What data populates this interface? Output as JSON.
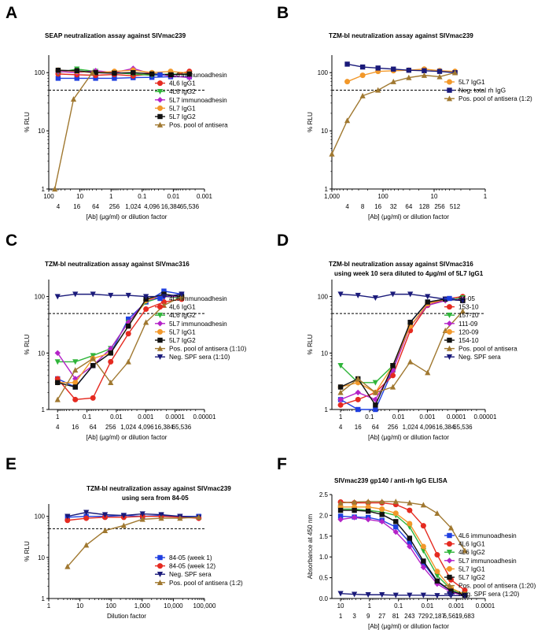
{
  "chart_data": [
    {
      "type": "line",
      "panel_label": "A",
      "title": "SEAP neutralization assay against SIVmac239",
      "title2": "",
      "ylabel": "% RLU",
      "xlabel": "[Ab] (μg/ml) or dilution factor",
      "x_scale": "log",
      "x_reversed": true,
      "xlim": [
        100,
        0.001
      ],
      "x_ticks": [
        "100",
        "10",
        "1",
        "0.1",
        "0.01",
        "0.001"
      ],
      "x_ticks2": [
        "4",
        "16",
        "64",
        "256",
        "1,024",
        "4,096",
        "16,384",
        "65,536"
      ],
      "y_scale": "log",
      "ylim": [
        1,
        200
      ],
      "y_ticks": [
        "1",
        "10",
        "100"
      ],
      "reference_line_y": 50,
      "legend_position": "right",
      "x": [
        50,
        12.5,
        3.125,
        0.78125,
        0.1953,
        0.0488,
        0.0122,
        0.00305
      ],
      "series": [
        {
          "name": "4L6 immunoadhesin",
          "color": "#1f3fe0",
          "marker": "square",
          "values": [
            80,
            80,
            80,
            80,
            82,
            83,
            85,
            85
          ]
        },
        {
          "name": "4L6 IgG1",
          "color": "#e52a20",
          "marker": "circle",
          "values": [
            95,
            92,
            90,
            93,
            88,
            95,
            90,
            105
          ]
        },
        {
          "name": "4L6 IgG2",
          "color": "#2fb53a",
          "marker": "triangle-down",
          "values": [
            100,
            115,
            105,
            100,
            95,
            90,
            95,
            92
          ]
        },
        {
          "name": "5L7 immunoadhesin",
          "color": "#b423c8",
          "marker": "diamond",
          "values": [
            105,
            100,
            108,
            100,
            118,
            95,
            88,
            82
          ]
        },
        {
          "name": "5L7 IgG1",
          "color": "#f2982a",
          "marker": "circle",
          "values": [
            110,
            105,
            100,
            105,
            110,
            100,
            105,
            98
          ]
        },
        {
          "name": "5L7 IgG2",
          "color": "#111111",
          "marker": "square",
          "values": [
            110,
            108,
            100,
            98,
            100,
            95,
            92,
            95
          ]
        },
        {
          "name": "Pos. pool of antisera",
          "color": "#a07830",
          "marker": "triangle",
          "x": [
            64,
            16,
            4
          ],
          "values": [
            1,
            35,
            100
          ]
        }
      ]
    },
    {
      "type": "line",
      "panel_label": "B",
      "title": "TZM-bl neutralization assay against SIVmac239",
      "title2": "",
      "ylabel": "% RLU",
      "xlabel": "[Ab] (μg/ml) or dilution factor",
      "x_scale": "log",
      "x_reversed": true,
      "xlim": [
        1000,
        1
      ],
      "x_ticks": [
        "1,000",
        "100",
        "10",
        "1"
      ],
      "x_ticks2": [
        "4",
        "8",
        "16",
        "32",
        "64",
        "128",
        "256",
        "512"
      ],
      "y_scale": "log",
      "ylim": [
        1,
        200
      ],
      "y_ticks": [
        "1",
        "10",
        "100"
      ],
      "reference_line_y": 50,
      "legend_position": "right",
      "x": [
        500,
        250,
        125,
        62.5,
        31.25,
        15.6,
        7.8,
        3.9
      ],
      "series": [
        {
          "name": "5L7 IgG1",
          "color": "#f2982a",
          "marker": "circle",
          "values": [
            70,
            90,
            105,
            108,
            110,
            115,
            108,
            105
          ]
        },
        {
          "name": "Neg. total rh IgG",
          "color": "#1a1a7a",
          "marker": "square",
          "values": [
            140,
            125,
            120,
            115,
            110,
            108,
            105,
            100
          ]
        },
        {
          "name": "Pos. pool of antisera (1:2)",
          "color": "#a07830",
          "marker": "triangle",
          "x": [
            1000,
            500,
            250,
            125,
            62.5,
            31.25,
            15.6,
            7.8,
            3.9
          ],
          "values": [
            4,
            15,
            40,
            50,
            70,
            82,
            90,
            85,
            100
          ]
        }
      ]
    },
    {
      "type": "line",
      "panel_label": "C",
      "title": "TZM-bl neutralization assay against SIVmac316",
      "title2": "",
      "ylabel": "% RLU",
      "xlabel": "[Ab] (μg/ml) or dilution factor",
      "x_scale": "log",
      "x_reversed": true,
      "xlim": [
        2,
        1e-05
      ],
      "x_ticks": [
        "1",
        "0.1",
        "0.01",
        "0.001",
        "0.0001",
        "0.00001"
      ],
      "x_ticks2": [
        "4",
        "16",
        "64",
        "256",
        "1,024",
        "4,096",
        "16,384",
        "65,536"
      ],
      "y_scale": "log",
      "ylim": [
        1,
        200
      ],
      "y_ticks": [
        "1",
        "10",
        "100"
      ],
      "reference_line_y": 50,
      "legend_position": "right",
      "x": [
        1,
        0.25,
        0.0625,
        0.0156,
        0.0039,
        0.00098,
        0.00024,
        6e-05
      ],
      "series": [
        {
          "name": "4L6 immunoadhesin",
          "color": "#1f3fe0",
          "marker": "square",
          "values": [
            3.5,
            2.5,
            6,
            10,
            40,
            80,
            125,
            110
          ]
        },
        {
          "name": "4L6 IgG1",
          "color": "#e52a20",
          "marker": "circle",
          "values": [
            3.5,
            1.5,
            1.6,
            7,
            22,
            60,
            80,
            90
          ]
        },
        {
          "name": "4L6 IgG2",
          "color": "#2fb53a",
          "marker": "triangle-down",
          "values": [
            7,
            7,
            9,
            12,
            35,
            80,
            100,
            95
          ]
        },
        {
          "name": "5L7 immunoadhesin",
          "color": "#b423c8",
          "marker": "diamond",
          "values": [
            10,
            3.5,
            6,
            12,
            35,
            85,
            100,
            100
          ]
        },
        {
          "name": "5L7 IgG1",
          "color": "#f2982a",
          "marker": "circle",
          "values": [
            3,
            3,
            8,
            10,
            30,
            85,
            110,
            100
          ]
        },
        {
          "name": "5L7 IgG2",
          "color": "#111111",
          "marker": "square",
          "values": [
            3,
            2.5,
            6,
            10,
            30,
            90,
            110,
            100
          ]
        },
        {
          "name": "Pos. pool of antisera (1:10)",
          "color": "#a07830",
          "marker": "triangle",
          "values": [
            1.5,
            5,
            8,
            3,
            7,
            35,
            70,
            100
          ]
        },
        {
          "name": "Neg. SPF sera (1:10)",
          "color": "#1a1a7a",
          "marker": "triangle-down",
          "values": [
            100,
            110,
            110,
            105,
            105,
            100,
            100,
            110
          ]
        }
      ]
    },
    {
      "type": "line",
      "panel_label": "D",
      "title": "TZM-bl neutralization assay against SIVmac316",
      "title2": "using week 10 sera diluted to 4μg/ml of 5L7 IgG1",
      "ylabel": "% RLU",
      "xlabel": "[Ab] (μg/ml) or dilution factor",
      "x_scale": "log",
      "x_reversed": true,
      "xlim": [
        2,
        1e-05
      ],
      "x_ticks": [
        "1",
        "0.1",
        "0.01",
        "0.001",
        "0.0001",
        "0.00001"
      ],
      "x_ticks2": [
        "4",
        "16",
        "64",
        "256",
        "1,024",
        "4,096",
        "16,384",
        "65,536"
      ],
      "y_scale": "log",
      "ylim": [
        1,
        200
      ],
      "y_ticks": [
        "1",
        "10",
        "100"
      ],
      "reference_line_y": 50,
      "legend_position": "right",
      "x": [
        1,
        0.25,
        0.0625,
        0.0156,
        0.0039,
        0.00098,
        0.00024,
        6e-05
      ],
      "series": [
        {
          "name": "84-05",
          "color": "#1f3fe0",
          "marker": "square",
          "values": [
            1.5,
            1,
            1,
            5,
            35,
            80,
            90,
            85
          ]
        },
        {
          "name": "153-10",
          "color": "#e52a20",
          "marker": "circle",
          "values": [
            1.2,
            1.5,
            2,
            4,
            25,
            70,
            90,
            100
          ]
        },
        {
          "name": "157-10",
          "color": "#2fb53a",
          "marker": "triangle-down",
          "values": [
            6,
            3,
            3,
            6,
            30,
            70,
            85,
            95
          ]
        },
        {
          "name": "111-09",
          "color": "#b423c8",
          "marker": "diamond",
          "values": [
            1.5,
            2,
            1.5,
            5,
            30,
            70,
            85,
            90
          ]
        },
        {
          "name": "120-09",
          "color": "#f2982a",
          "marker": "circle",
          "values": [
            2.5,
            3,
            2,
            6,
            30,
            75,
            90,
            85
          ]
        },
        {
          "name": "154-10",
          "color": "#111111",
          "marker": "square",
          "values": [
            2.5,
            3.5,
            1.2,
            6,
            35,
            80,
            90,
            85
          ]
        },
        {
          "name": "Pos. pool of antisera",
          "color": "#a07830",
          "marker": "triangle",
          "values": [
            2,
            3.5,
            2,
            2.5,
            7,
            4.5,
            25,
            55
          ]
        },
        {
          "name": "Neg. SPF sera",
          "color": "#1a1a7a",
          "marker": "triangle-down",
          "values": [
            110,
            105,
            95,
            110,
            110,
            100,
            90,
            85
          ]
        }
      ]
    },
    {
      "type": "line",
      "panel_label": "E",
      "title": "TZM-bl neutralization assay against SIVmac239",
      "title2": "using sera from 84-05",
      "ylabel": "% RLU",
      "xlabel": "Dilution factor",
      "x_scale": "log",
      "x_reversed": false,
      "xlim": [
        1,
        100000
      ],
      "x_ticks": [
        "1",
        "10",
        "100",
        "1,000",
        "10,000",
        "100,000"
      ],
      "x_ticks2": [],
      "y_scale": "log",
      "ylim": [
        1,
        200
      ],
      "y_ticks": [
        "1",
        "10",
        "100"
      ],
      "reference_line_y": 50,
      "legend_position": "right",
      "x": [
        4,
        16,
        64,
        256,
        1024,
        4096,
        16384,
        65536
      ],
      "series": [
        {
          "name": "84-05 (week 1)",
          "color": "#1f3fe0",
          "marker": "square",
          "values": [
            95,
            100,
            100,
            105,
            100,
            105,
            100,
            100
          ]
        },
        {
          "name": "84-05 (week 12)",
          "color": "#e52a20",
          "marker": "circle",
          "values": [
            80,
            90,
            95,
            95,
            100,
            100,
            95,
            90
          ]
        },
        {
          "name": "Neg. SPF sera",
          "color": "#1a1a7a",
          "marker": "triangle-down",
          "values": [
            100,
            125,
            110,
            105,
            115,
            110,
            100,
            95
          ]
        },
        {
          "name": "Pos. pool of antisera (1:2)",
          "color": "#a07830",
          "marker": "triangle",
          "values": [
            6,
            20,
            45,
            60,
            85,
            90,
            90,
            95
          ]
        }
      ]
    },
    {
      "type": "line",
      "panel_label": "F",
      "title": "SIVmac239 gp140 / anti-rh IgG ELISA",
      "title2": "",
      "ylabel": "Absorbance at 450 nm",
      "xlabel": "[Ab] (μg/ml) or dilution factor",
      "x_scale": "log",
      "x_reversed": true,
      "xlim": [
        20,
        0.0001
      ],
      "x_ticks": [
        "10",
        "1",
        "0.1",
        "0.01",
        "0.001",
        "0.0001"
      ],
      "x_ticks2": [
        "1",
        "3",
        "9",
        "27",
        "81",
        "243",
        "729",
        "2,187",
        "6,561",
        "19,683"
      ],
      "y_scale": "linear",
      "ylim": [
        0,
        2.5
      ],
      "y_ticks": [
        "0.0",
        "0.5",
        "1.0",
        "1.5",
        "2.0",
        "2.5"
      ],
      "legend_position": "right",
      "x": [
        10,
        3.333,
        1.111,
        0.3704,
        0.1235,
        0.04115,
        0.01372,
        0.004572,
        0.001524,
        0.000508
      ],
      "series": [
        {
          "name": "4L6 immunoadhesin",
          "color": "#1f3fe0",
          "marker": "square",
          "values": [
            1.98,
            1.96,
            1.95,
            1.88,
            1.72,
            1.35,
            0.85,
            0.4,
            0.18,
            0.08
          ]
        },
        {
          "name": "4L6 IgG1",
          "color": "#e52a20",
          "marker": "circle",
          "values": [
            2.32,
            2.3,
            2.3,
            2.3,
            2.26,
            2.12,
            1.75,
            1.05,
            0.45,
            0.2
          ]
        },
        {
          "name": "4L6 IgG2",
          "color": "#2fb53a",
          "marker": "triangle-down",
          "values": [
            2.15,
            2.15,
            2.12,
            2.08,
            2.0,
            1.72,
            1.15,
            0.55,
            0.22,
            0.1
          ]
        },
        {
          "name": "5L7 immunoadhesin",
          "color": "#b423c8",
          "marker": "diamond",
          "values": [
            1.9,
            1.95,
            1.9,
            1.85,
            1.6,
            1.25,
            0.75,
            0.35,
            0.15,
            0.07
          ]
        },
        {
          "name": "5L7 IgG1",
          "color": "#f2982a",
          "marker": "circle",
          "values": [
            2.2,
            2.2,
            2.2,
            2.15,
            2.05,
            1.8,
            1.25,
            0.65,
            0.25,
            0.1
          ]
        },
        {
          "name": "5L7 IgG2",
          "color": "#111111",
          "marker": "square",
          "values": [
            2.12,
            2.12,
            2.1,
            2.02,
            1.85,
            1.45,
            0.9,
            0.42,
            0.18,
            0.08
          ]
        },
        {
          "name": "Pos. pool of antisera (1:20)",
          "color": "#a07830",
          "marker": "triangle",
          "values": [
            2.3,
            2.32,
            2.33,
            2.33,
            2.33,
            2.3,
            2.25,
            2.05,
            1.7,
            1.15
          ]
        },
        {
          "name": "Neg. SPF sera (1:20)",
          "color": "#1a1a7a",
          "marker": "triangle-down",
          "values": [
            0.12,
            0.1,
            0.09,
            0.09,
            0.08,
            0.08,
            0.08,
            0.07,
            0.07,
            0.07
          ]
        }
      ]
    }
  ]
}
